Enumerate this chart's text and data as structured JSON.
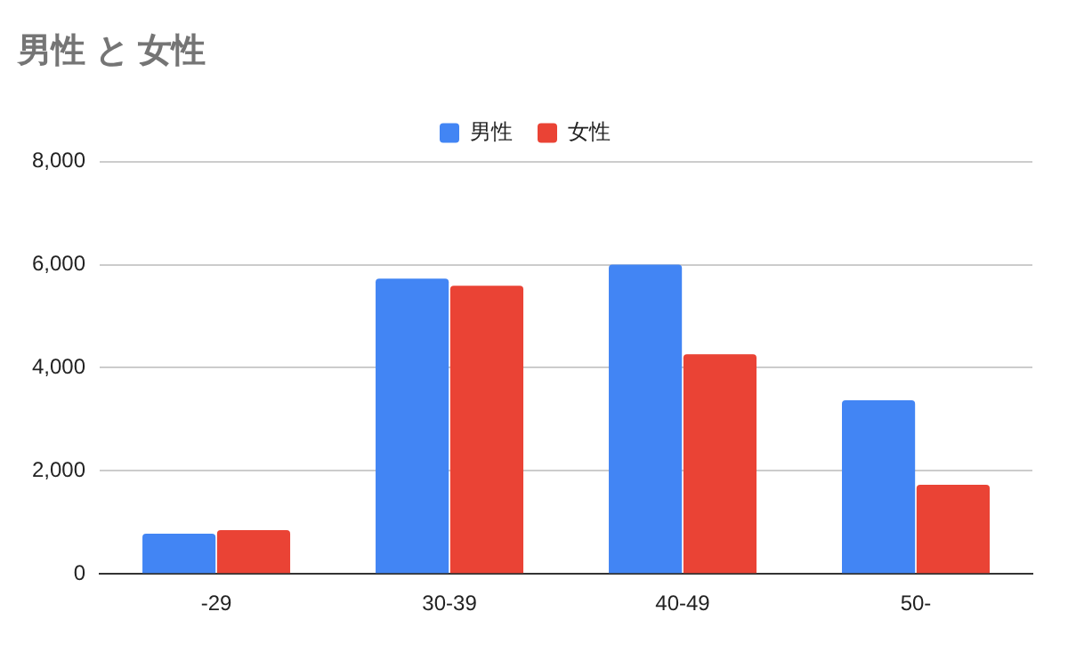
{
  "chart_data": {
    "type": "bar",
    "title": "男性 と 女性",
    "categories": [
      "-29",
      "30-39",
      "40-49",
      "50-"
    ],
    "series": [
      {
        "name": "男性",
        "color": "#4285f4",
        "values": [
          780,
          5730,
          6000,
          3370
        ]
      },
      {
        "name": "女性",
        "color": "#ea4335",
        "values": [
          850,
          5590,
          4260,
          1730
        ]
      }
    ],
    "ylim": [
      0,
      8000
    ],
    "yticks": [
      {
        "value": 0,
        "label": "0"
      },
      {
        "value": 2000,
        "label": "2,000"
      },
      {
        "value": 4000,
        "label": "4,000"
      },
      {
        "value": 6000,
        "label": "6,000"
      },
      {
        "value": 8000,
        "label": "8,000"
      }
    ],
    "grid": "y",
    "legend": "top"
  }
}
